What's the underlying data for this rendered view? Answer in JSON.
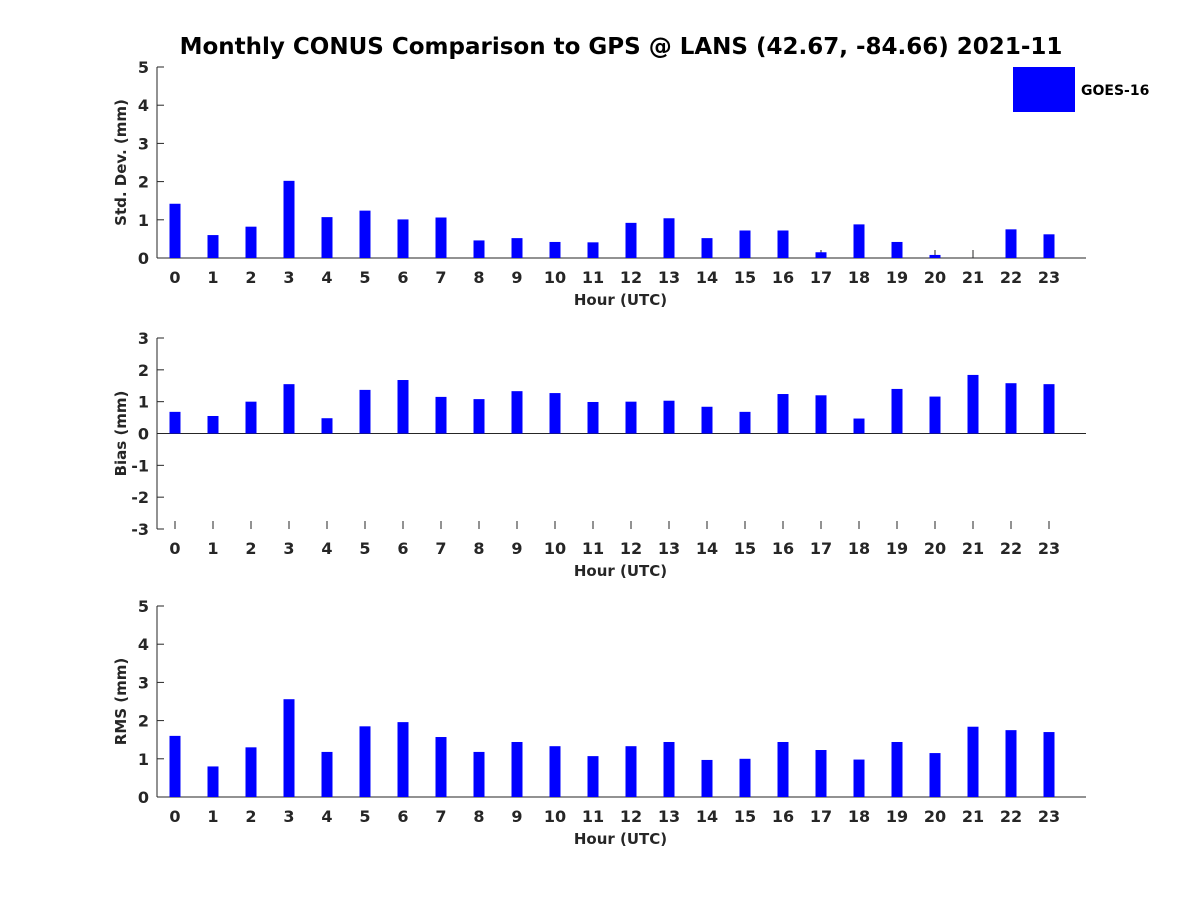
{
  "figure": {
    "title": "Monthly CONUS Comparison to GPS @ LANS (42.67, -84.66) 2021-11",
    "legend": {
      "label": "GOES-16",
      "color": "#0000FF"
    },
    "bar_color": "#0000FF"
  },
  "chart_data": [
    {
      "type": "bar",
      "categories": [
        "0",
        "1",
        "2",
        "3",
        "4",
        "5",
        "6",
        "7",
        "8",
        "9",
        "10",
        "11",
        "12",
        "13",
        "14",
        "15",
        "16",
        "17",
        "18",
        "19",
        "20",
        "21",
        "22",
        "23"
      ],
      "series": [
        {
          "name": "GOES-16",
          "values": [
            1.42,
            0.6,
            0.82,
            2.02,
            1.07,
            1.24,
            1.01,
            1.06,
            0.46,
            0.52,
            0.42,
            0.41,
            0.92,
            1.04,
            0.52,
            0.72,
            0.72,
            0.15,
            0.88,
            0.42,
            0.08,
            0.0,
            0.75,
            0.62
          ]
        }
      ],
      "xlabel": "Hour (UTC)",
      "ylabel": "Std. Dev. (mm)",
      "ylim": [
        0,
        5
      ],
      "yticks": [
        0,
        1,
        2,
        3,
        4,
        5
      ],
      "legend": "top-right",
      "grid": false
    },
    {
      "type": "bar",
      "categories": [
        "0",
        "1",
        "2",
        "3",
        "4",
        "5",
        "6",
        "7",
        "8",
        "9",
        "10",
        "11",
        "12",
        "13",
        "14",
        "15",
        "16",
        "17",
        "18",
        "19",
        "20",
        "21",
        "22",
        "23"
      ],
      "series": [
        {
          "name": "GOES-16",
          "values": [
            0.68,
            0.55,
            1.0,
            1.55,
            0.48,
            1.37,
            1.68,
            1.15,
            1.08,
            1.33,
            1.27,
            0.99,
            1.0,
            1.03,
            0.84,
            0.68,
            1.24,
            1.2,
            0.47,
            1.4,
            1.16,
            1.84,
            1.58,
            1.55
          ]
        }
      ],
      "xlabel": "Hour (UTC)",
      "ylabel": "Bias (mm)",
      "ylim": [
        -3,
        3
      ],
      "yticks": [
        -3,
        -2,
        -1,
        0,
        1,
        2,
        3
      ],
      "grid": false
    },
    {
      "type": "bar",
      "categories": [
        "0",
        "1",
        "2",
        "3",
        "4",
        "5",
        "6",
        "7",
        "8",
        "9",
        "10",
        "11",
        "12",
        "13",
        "14",
        "15",
        "16",
        "17",
        "18",
        "19",
        "20",
        "21",
        "22",
        "23"
      ],
      "series": [
        {
          "name": "GOES-16",
          "values": [
            1.6,
            0.8,
            1.3,
            2.56,
            1.18,
            1.85,
            1.96,
            1.57,
            1.18,
            1.44,
            1.33,
            1.07,
            1.33,
            1.44,
            0.97,
            1.0,
            1.44,
            1.23,
            0.98,
            1.44,
            1.15,
            1.84,
            1.75,
            1.7
          ]
        }
      ],
      "xlabel": "Hour (UTC)",
      "ylabel": "RMS (mm)",
      "ylim": [
        0,
        5
      ],
      "yticks": [
        0,
        1,
        2,
        3,
        4,
        5
      ],
      "grid": false
    }
  ]
}
